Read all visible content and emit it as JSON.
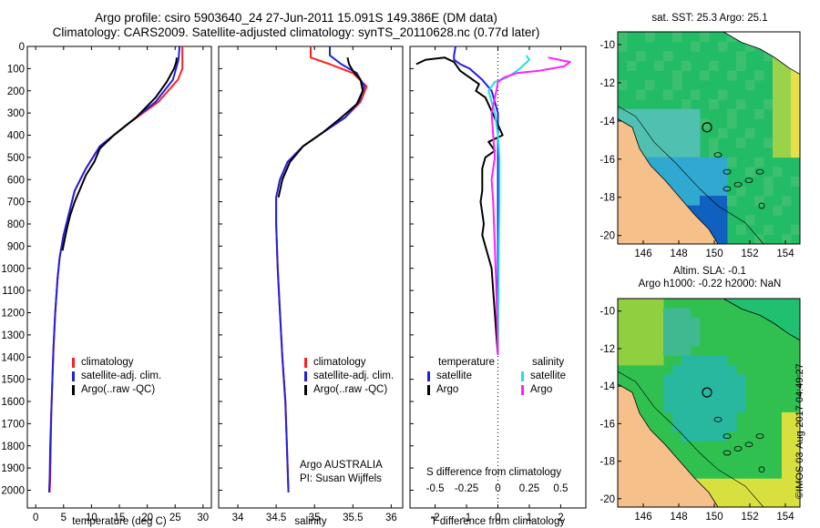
{
  "header": {
    "title_line1": "Argo profile: csiro 5903640_24 27-Jun-2011 15.091S 149.386E (DM data)",
    "title_line2": "Climatology: CARS2009. Satellite-adjusted climatology: synTS_20110628.nc (0.77d later)"
  },
  "colors": {
    "clim": "#ff2020",
    "sat": "#2020e0",
    "argo": "#000000",
    "cyan": "#20e0e0",
    "magenta": "#ff20ff"
  },
  "chart_data": [
    {
      "id": "temperature",
      "type": "line",
      "xlabel": "temperature (deg C)",
      "ylabel": "",
      "xlim": [
        -1.5,
        31.5
      ],
      "ylim": [
        0,
        2080
      ],
      "xticks": [
        0,
        5,
        10,
        15,
        20,
        25,
        30
      ],
      "yticks": [
        0,
        100,
        200,
        300,
        400,
        500,
        600,
        700,
        800,
        900,
        1000,
        1100,
        1200,
        1300,
        1400,
        1500,
        1600,
        1700,
        1800,
        1900,
        2000
      ],
      "legend": [
        "climatology",
        "satellite-adj. clim.",
        "Argo(..raw -QC)"
      ],
      "series": [
        {
          "name": "climatology",
          "color": "clim",
          "x": [
            26.3,
            26.3,
            25.5,
            22.0,
            16.5,
            11.5,
            9.0,
            7.0,
            6.0,
            5.0,
            4.3,
            3.9,
            3.5,
            3.2,
            3.0,
            2.8,
            2.7,
            2.6,
            2.5
          ],
          "y": [
            0,
            100,
            150,
            250,
            350,
            450,
            550,
            650,
            750,
            850,
            950,
            1050,
            1200,
            1350,
            1500,
            1650,
            1800,
            1950,
            2010
          ]
        },
        {
          "name": "satellite",
          "color": "sat",
          "x": [
            25.8,
            25.6,
            24.6,
            21.5,
            16.5,
            11.5,
            9.0,
            7.0,
            6.0,
            5.0,
            4.3,
            3.9,
            3.5,
            3.2,
            3.0,
            2.8,
            2.6,
            2.5,
            2.4
          ],
          "y": [
            0,
            60,
            150,
            250,
            350,
            450,
            550,
            650,
            750,
            850,
            950,
            1050,
            1200,
            1350,
            1500,
            1650,
            1800,
            1950,
            2010
          ]
        },
        {
          "name": "Argo",
          "color": "argo",
          "x": [
            25.3,
            25.2,
            24.8,
            23.5,
            21.5,
            18.0,
            14.0,
            11.5,
            10.5,
            9.0,
            8.0,
            7.0,
            6.2,
            5.6,
            5.2,
            4.8
          ],
          "y": [
            50,
            70,
            100,
            160,
            230,
            320,
            400,
            460,
            520,
            580,
            640,
            700,
            760,
            820,
            870,
            920
          ]
        }
      ]
    },
    {
      "id": "salinity",
      "type": "line",
      "xlabel": "salinity",
      "xlim": [
        33.75,
        36.15
      ],
      "ylim": [
        0,
        2080
      ],
      "xticks": [
        34,
        34.5,
        35,
        35.5,
        36
      ],
      "legend": [
        "climatology",
        "satellite-adj. clim.",
        "Argo(..raw -QC)"
      ],
      "series": [
        {
          "name": "climatology",
          "color": "clim",
          "x": [
            34.95,
            34.95,
            35.2,
            35.5,
            35.68,
            35.6,
            35.4,
            35.1,
            34.85,
            34.65,
            34.55,
            34.5,
            34.5,
            34.52,
            34.55,
            34.58,
            34.62,
            34.64,
            34.66
          ],
          "y": [
            0,
            50,
            80,
            120,
            180,
            250,
            320,
            390,
            450,
            520,
            600,
            680,
            800,
            1000,
            1200,
            1400,
            1600,
            1800,
            2010
          ]
        },
        {
          "name": "satellite",
          "color": "sat",
          "x": [
            35.2,
            35.2,
            35.35,
            35.55,
            35.65,
            35.58,
            35.4,
            35.1,
            34.85,
            34.65,
            34.55,
            34.5,
            34.5,
            34.52,
            34.55,
            34.58,
            34.62,
            34.64,
            34.66
          ],
          "y": [
            0,
            40,
            80,
            120,
            180,
            250,
            320,
            390,
            450,
            520,
            600,
            680,
            800,
            1000,
            1200,
            1400,
            1600,
            1800,
            2010
          ]
        },
        {
          "name": "Argo",
          "color": "argo",
          "x": [
            35.43,
            35.45,
            35.5,
            35.6,
            35.63,
            35.55,
            35.35,
            35.1,
            34.85,
            34.68,
            34.58,
            34.53
          ],
          "y": [
            50,
            80,
            110,
            150,
            200,
            260,
            320,
            390,
            450,
            520,
            600,
            680
          ]
        }
      ],
      "annotations": [
        "Argo AUSTRALIA",
        "PI: Susan Wijffels"
      ]
    },
    {
      "id": "differences",
      "type": "line",
      "xlabel": "T difference from climatology",
      "xlabel_top": "S difference from climatology",
      "xlim": [
        -2.8,
        2.8
      ],
      "ylim": [
        0,
        2080
      ],
      "xticks": [
        -2,
        -1,
        0,
        1,
        2
      ],
      "top_ticks_labels": [
        "-0.5",
        "-0.25",
        "0",
        "0.25",
        "0.5"
      ],
      "legend_temperature": {
        "heading": "temperature",
        "items": [
          "satellite",
          "Argo"
        ]
      },
      "legend_salinity": {
        "heading": "salinity",
        "items": [
          "satellite",
          "Argo"
        ]
      },
      "series": [
        {
          "name": "T satellite",
          "color": "sat",
          "x": [
            -1.35,
            -1.4,
            -1.4,
            -1.2,
            -0.9,
            -0.5,
            -0.2,
            -0.1,
            0,
            0,
            0,
            0,
            0
          ],
          "y": [
            0,
            40,
            60,
            80,
            100,
            150,
            200,
            250,
            300,
            450,
            700,
            1000,
            1380
          ]
        },
        {
          "name": "T Argo",
          "color": "argo",
          "x": [
            -2.6,
            -2.3,
            -1.7,
            -1.4,
            -1.2,
            -1.0,
            -0.6,
            -0.7,
            -0.4,
            0.15,
            -0.3,
            -0.1,
            -0.4,
            -0.5,
            -0.5,
            -0.5,
            -0.55,
            -0.5,
            -0.45,
            -0.5,
            -0.4,
            -0.3,
            -0.2,
            -0.15,
            -0.1,
            -0.05,
            0
          ],
          "y": [
            80,
            60,
            50,
            70,
            110,
            130,
            170,
            200,
            230,
            400,
            430,
            470,
            500,
            550,
            600,
            650,
            700,
            750,
            800,
            850,
            900,
            950,
            1000,
            1100,
            1200,
            1300,
            1390
          ]
        },
        {
          "name": "S satellite",
          "color": "cyan",
          "x": [
            0.9,
            1.0,
            0.85,
            0.7,
            0.3,
            -0.1,
            -0.3,
            -0.1,
            0,
            0.05,
            0.05,
            0.03,
            0.02,
            0
          ],
          "y": [
            40,
            60,
            80,
            100,
            140,
            160,
            200,
            300,
            400,
            500,
            700,
            900,
            1100,
            1380
          ]
        },
        {
          "name": "S Argo",
          "color": "magenta",
          "x": [
            1.6,
            2.3,
            2.1,
            1.3,
            0.6,
            0.2,
            0,
            -0.05,
            -0.2,
            -0.15,
            -0.1,
            -0.2,
            -0.15,
            -0.1,
            -0.05,
            0
          ],
          "y": [
            50,
            70,
            90,
            110,
            120,
            140,
            160,
            200,
            300,
            400,
            500,
            600,
            700,
            900,
            1100,
            1390
          ]
        }
      ]
    }
  ],
  "maps": {
    "sst": {
      "title": "sat. SST: 25.3 Argo: 25.1",
      "lon_ticks": [
        "146",
        "148",
        "150",
        "152",
        "154"
      ],
      "lat_ticks": [
        "-10",
        "-12",
        "-14",
        "-16",
        "-18",
        "-20"
      ]
    },
    "sla": {
      "title_line1": "Altim. SLA: -0.1",
      "title_line2": "Argo h1000: -0.22 h2000: NaN",
      "lon_ticks": [
        "146",
        "148",
        "150",
        "152",
        "154"
      ],
      "lat_ticks": [
        "-10",
        "-12",
        "-14",
        "-16",
        "-18",
        "-20"
      ]
    }
  },
  "footer": {
    "credit": "©IMOS 03-Aug-2017 04:49:27"
  }
}
